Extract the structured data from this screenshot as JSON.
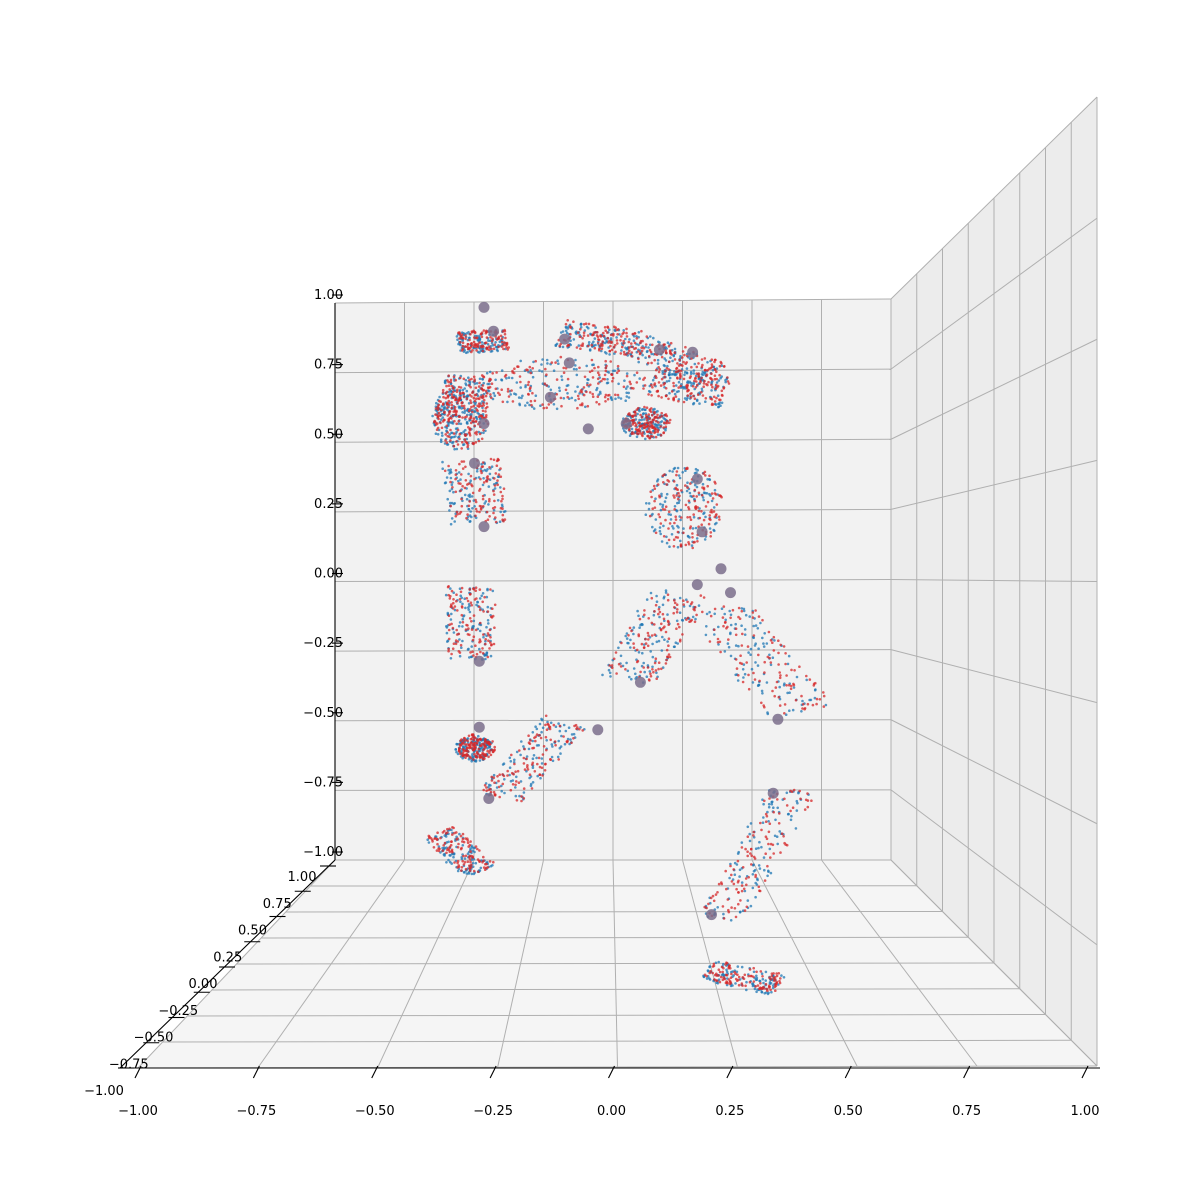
{
  "chart_data": {
    "type": "scatter",
    "projection": "3d",
    "title": "",
    "xlabel": "",
    "ylabel": "",
    "zlabel": "",
    "xlim": [
      -1.0,
      1.0
    ],
    "ylim": [
      -1.0,
      1.0
    ],
    "zlim": [
      -1.0,
      1.0
    ],
    "grid": true,
    "pane_color": "#f2f2f2",
    "x_ticks": [
      -1.0,
      -0.75,
      -0.5,
      -0.25,
      0.0,
      0.25,
      0.5,
      0.75,
      1.0
    ],
    "x_tick_labels": [
      "−1.00",
      "−0.75",
      "−0.50",
      "−0.25",
      "0.00",
      "0.25",
      "0.50",
      "0.75",
      "1.00"
    ],
    "y_ticks": [
      -1.0,
      -0.75,
      -0.5,
      -0.25,
      0.0,
      0.25,
      0.5,
      0.75,
      1.0
    ],
    "y_tick_labels": [
      "−1.00",
      "−0.75",
      "−0.50",
      "−0.25",
      "0.00",
      "0.25",
      "0.50",
      "0.75",
      "1.00"
    ],
    "z_ticks": [
      -1.0,
      -0.75,
      -0.5,
      -0.25,
      0.0,
      0.25,
      0.5,
      0.75,
      1.0
    ],
    "z_tick_labels": [
      "−1.00",
      "−0.75",
      "−0.50",
      "−0.25",
      "0.00",
      "0.25",
      "0.50",
      "0.75",
      "1.00"
    ],
    "series": [
      {
        "color": "#1f77b4",
        "marker_size": "small",
        "segments": [
          {
            "part": "head",
            "shape": "ellipse",
            "c": [
              -0.32,
              0.62
            ],
            "r": [
              0.06,
              0.12
            ]
          },
          {
            "part": "neck",
            "shape": "seg",
            "a": [
              -0.28,
              0.95
            ],
            "b": [
              -0.27,
              0.87
            ],
            "w": 0.05
          },
          {
            "part": "torso",
            "shape": "ellipse",
            "c": [
              -0.11,
              0.75
            ],
            "r": [
              0.18,
              0.1
            ]
          },
          {
            "part": "upper-arm-r",
            "shape": "seg",
            "a": [
              -0.11,
              0.94
            ],
            "b": [
              0.05,
              0.9
            ],
            "w": 0.05
          },
          {
            "part": "forearm-r",
            "shape": "seg",
            "a": [
              0.05,
              0.9
            ],
            "b": [
              0.21,
              0.78
            ],
            "w": 0.05
          },
          {
            "part": "clavicle-l",
            "shape": "seg",
            "a": [
              -0.3,
              0.78
            ],
            "b": [
              -0.33,
              0.6
            ],
            "w": 0.05
          },
          {
            "part": "upper-arm-l",
            "shape": "seg",
            "a": [
              -0.3,
              0.46
            ],
            "b": [
              -0.28,
              0.22
            ],
            "w": 0.06
          },
          {
            "part": "forearm-l",
            "shape": "seg",
            "a": [
              -0.3,
              -0.02
            ],
            "b": [
              -0.3,
              -0.3
            ],
            "w": 0.05
          },
          {
            "part": "hand-l",
            "shape": "ellipse",
            "c": [
              -0.29,
              -0.63
            ],
            "r": [
              0.04,
              0.05
            ]
          },
          {
            "part": "forearm-l2",
            "shape": "seg",
            "a": [
              -0.24,
              -0.82
            ],
            "b": [
              -0.1,
              -0.53
            ],
            "w": 0.05
          },
          {
            "part": "foot-l",
            "shape": "seg",
            "a": [
              -0.37,
              -0.95
            ],
            "b": [
              -0.28,
              -1.1
            ],
            "w": 0.04
          },
          {
            "part": "forearm-r2",
            "shape": "seg",
            "a": [
              0.08,
              0.75
            ],
            "b": [
              0.24,
              0.72
            ],
            "w": 0.06
          },
          {
            "part": "hip-r",
            "shape": "ellipse",
            "c": [
              0.07,
              0.6
            ],
            "r": [
              0.05,
              0.06
            ]
          },
          {
            "part": "pelvis",
            "shape": "ellipse",
            "c": [
              0.15,
              0.28
            ],
            "r": [
              0.08,
              0.16
            ]
          },
          {
            "part": "thigh-l",
            "shape": "seg",
            "a": [
              0.14,
              -0.04
            ],
            "b": [
              0.03,
              -0.37
            ],
            "w": 0.06
          },
          {
            "part": "thigh-r",
            "shape": "seg",
            "a": [
              0.22,
              -0.1
            ],
            "b": [
              0.4,
              -0.5
            ],
            "w": 0.07
          },
          {
            "part": "shin-r",
            "shape": "seg",
            "a": [
              0.38,
              -0.79
            ],
            "b": [
              0.23,
              -1.28
            ],
            "w": 0.05
          },
          {
            "part": "foot-r",
            "shape": "seg",
            "a": [
              0.2,
              -1.47
            ],
            "b": [
              0.35,
              -1.53
            ],
            "w": 0.04
          }
        ]
      },
      {
        "color": "#d62728",
        "marker_size": "small",
        "segments": [
          {
            "part": "head",
            "shape": "ellipse",
            "c": [
              -0.32,
              0.62
            ],
            "r": [
              0.06,
              0.12
            ]
          },
          {
            "part": "neck",
            "shape": "seg",
            "a": [
              -0.28,
              0.95
            ],
            "b": [
              -0.27,
              0.87
            ],
            "w": 0.05
          },
          {
            "part": "torso",
            "shape": "ellipse",
            "c": [
              -0.11,
              0.75
            ],
            "r": [
              0.18,
              0.1
            ]
          },
          {
            "part": "upper-arm-r",
            "shape": "seg",
            "a": [
              -0.11,
              0.94
            ],
            "b": [
              0.05,
              0.9
            ],
            "w": 0.05
          },
          {
            "part": "forearm-r",
            "shape": "seg",
            "a": [
              0.05,
              0.9
            ],
            "b": [
              0.21,
              0.78
            ],
            "w": 0.05
          },
          {
            "part": "clavicle-l",
            "shape": "seg",
            "a": [
              -0.3,
              0.78
            ],
            "b": [
              -0.33,
              0.6
            ],
            "w": 0.05
          },
          {
            "part": "upper-arm-l",
            "shape": "seg",
            "a": [
              -0.3,
              0.46
            ],
            "b": [
              -0.28,
              0.22
            ],
            "w": 0.06
          },
          {
            "part": "forearm-l",
            "shape": "seg",
            "a": [
              -0.3,
              -0.02
            ],
            "b": [
              -0.3,
              -0.3
            ],
            "w": 0.05
          },
          {
            "part": "hand-l",
            "shape": "ellipse",
            "c": [
              -0.29,
              -0.63
            ],
            "r": [
              0.04,
              0.05
            ]
          },
          {
            "part": "forearm-l2",
            "shape": "seg",
            "a": [
              -0.24,
              -0.82
            ],
            "b": [
              -0.1,
              -0.53
            ],
            "w": 0.05
          },
          {
            "part": "foot-l",
            "shape": "seg",
            "a": [
              -0.37,
              -0.95
            ],
            "b": [
              -0.28,
              -1.1
            ],
            "w": 0.04
          },
          {
            "part": "forearm-r2",
            "shape": "seg",
            "a": [
              0.08,
              0.75
            ],
            "b": [
              0.24,
              0.72
            ],
            "w": 0.06
          },
          {
            "part": "hip-r",
            "shape": "ellipse",
            "c": [
              0.07,
              0.6
            ],
            "r": [
              0.05,
              0.06
            ]
          },
          {
            "part": "pelvis",
            "shape": "ellipse",
            "c": [
              0.15,
              0.28
            ],
            "r": [
              0.08,
              0.16
            ]
          },
          {
            "part": "thigh-l",
            "shape": "seg",
            "a": [
              0.14,
              -0.04
            ],
            "b": [
              0.03,
              -0.37
            ],
            "w": 0.06
          },
          {
            "part": "thigh-r",
            "shape": "seg",
            "a": [
              0.22,
              -0.1
            ],
            "b": [
              0.4,
              -0.5
            ],
            "w": 0.07
          },
          {
            "part": "shin-r",
            "shape": "seg",
            "a": [
              0.38,
              -0.79
            ],
            "b": [
              0.23,
              -1.28
            ],
            "w": 0.05
          },
          {
            "part": "foot-r",
            "shape": "seg",
            "a": [
              0.2,
              -1.47
            ],
            "b": [
              0.35,
              -1.53
            ],
            "w": 0.04
          }
        ]
      }
    ],
    "joints": [
      [
        -0.27,
        1.04
      ],
      [
        -0.25,
        0.95
      ],
      [
        -0.1,
        0.92
      ],
      [
        -0.09,
        0.83
      ],
      [
        -0.13,
        0.7
      ],
      [
        -0.05,
        0.58
      ],
      [
        0.03,
        0.6
      ],
      [
        0.1,
        0.88
      ],
      [
        0.17,
        0.87
      ],
      [
        -0.27,
        0.6
      ],
      [
        -0.29,
        0.45
      ],
      [
        -0.27,
        0.21
      ],
      [
        -0.28,
        -0.3
      ],
      [
        -0.28,
        -0.55
      ],
      [
        -0.26,
        -0.82
      ],
      [
        -0.03,
        -0.56
      ],
      [
        0.18,
        0.39
      ],
      [
        0.19,
        0.19
      ],
      [
        0.23,
        0.05
      ],
      [
        0.18,
        -0.01
      ],
      [
        0.25,
        -0.04
      ],
      [
        0.06,
        -0.38
      ],
      [
        0.35,
        -0.52
      ],
      [
        0.34,
        -0.8
      ],
      [
        0.21,
        -1.26
      ]
    ],
    "joint_color": "#7b6e8c"
  }
}
